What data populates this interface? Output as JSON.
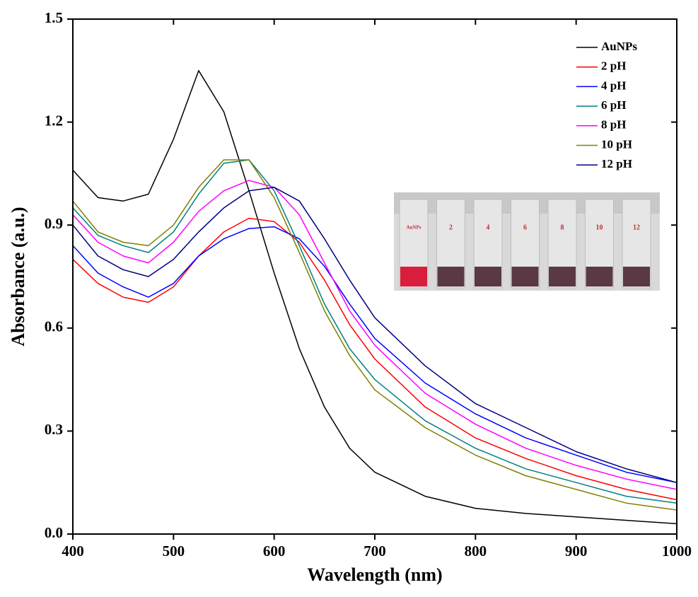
{
  "chart_data": {
    "type": "line",
    "x_label": "Wavelength (nm)",
    "y_label": "Absorbance (a.u.)",
    "x": [
      400,
      425,
      450,
      475,
      500,
      525,
      550,
      575,
      600,
      625,
      650,
      675,
      700,
      750,
      800,
      850,
      900,
      950,
      1000
    ],
    "series": [
      {
        "name": "AuNPs",
        "color": "#000000",
        "values": [
          1.06,
          0.98,
          0.97,
          0.99,
          1.15,
          1.35,
          1.23,
          1.0,
          0.76,
          0.54,
          0.37,
          0.25,
          0.18,
          0.11,
          0.075,
          0.06,
          0.05,
          0.04,
          0.03
        ]
      },
      {
        "name": "2 pH",
        "color": "#ff0000",
        "values": [
          0.8,
          0.73,
          0.69,
          0.675,
          0.72,
          0.81,
          0.88,
          0.92,
          0.91,
          0.85,
          0.74,
          0.61,
          0.51,
          0.37,
          0.28,
          0.22,
          0.17,
          0.13,
          0.1
        ]
      },
      {
        "name": "4 pH",
        "color": "#0000ff",
        "values": [
          0.84,
          0.76,
          0.72,
          0.69,
          0.73,
          0.81,
          0.86,
          0.89,
          0.895,
          0.86,
          0.78,
          0.67,
          0.57,
          0.44,
          0.35,
          0.28,
          0.23,
          0.18,
          0.15
        ]
      },
      {
        "name": "6 pH",
        "color": "#008080",
        "values": [
          0.95,
          0.87,
          0.84,
          0.82,
          0.88,
          0.99,
          1.08,
          1.09,
          1.0,
          0.84,
          0.67,
          0.54,
          0.45,
          0.33,
          0.25,
          0.19,
          0.15,
          0.11,
          0.09
        ]
      },
      {
        "name": "8 pH",
        "color": "#ff00ff",
        "values": [
          0.93,
          0.85,
          0.81,
          0.79,
          0.85,
          0.94,
          1.0,
          1.03,
          1.01,
          0.93,
          0.79,
          0.65,
          0.55,
          0.41,
          0.32,
          0.25,
          0.2,
          0.16,
          0.13
        ]
      },
      {
        "name": "10 pH",
        "color": "#808000",
        "values": [
          0.97,
          0.88,
          0.85,
          0.84,
          0.9,
          1.01,
          1.09,
          1.09,
          0.98,
          0.82,
          0.65,
          0.52,
          0.42,
          0.31,
          0.23,
          0.17,
          0.13,
          0.09,
          0.07
        ]
      },
      {
        "name": "12 pH",
        "color": "#000080",
        "values": [
          0.9,
          0.81,
          0.77,
          0.75,
          0.8,
          0.88,
          0.95,
          1.0,
          1.01,
          0.97,
          0.86,
          0.74,
          0.63,
          0.49,
          0.38,
          0.31,
          0.24,
          0.19,
          0.15
        ]
      }
    ],
    "xlim": [
      400,
      1000
    ],
    "xticks": [
      400,
      500,
      600,
      700,
      800,
      900,
      1000
    ],
    "ylim": [
      0,
      1.5
    ],
    "yticks": [
      {
        "value": 0,
        "label": "0.0"
      },
      0.3,
      0.6,
      0.9,
      1.2,
      1.5
    ],
    "legend": "upper right",
    "inset_labels": [
      "AuNPs",
      "2",
      "4",
      "6",
      "8",
      "10",
      "12"
    ]
  }
}
